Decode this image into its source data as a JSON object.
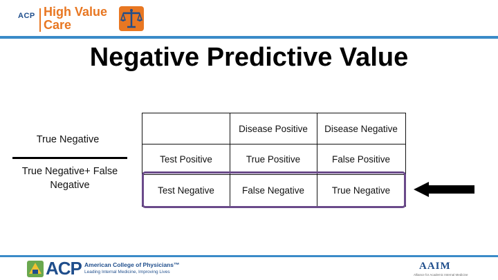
{
  "header": {
    "logo_acp": "ACP",
    "logo_line1": "High Value",
    "logo_line2": "Care"
  },
  "title": "Negative Predictive Value",
  "formula": {
    "numerator": "True Negative",
    "denominator": "True Negative+ False Negative"
  },
  "table": {
    "col_headers": [
      "",
      "Disease Positive",
      "Disease Negative"
    ],
    "rows": [
      [
        "Test Positive",
        "True Positive",
        "False Positive"
      ],
      [
        "Test Negative",
        "False Negative",
        "True Negative"
      ]
    ]
  },
  "footer": {
    "acp_logo": "ACP",
    "acp_name": "American College of Physicians™",
    "acp_tagline": "Leading Internal Medicine, Improving Lives",
    "aaim_logo": "AAIM",
    "aaim_tagline": "Alliance for Academic Internal Medicine"
  },
  "colors": {
    "accent_orange": "#e87722",
    "accent_blue": "#3a8bc8",
    "brand_navy": "#1f4e8c",
    "highlight_purple": "#6a4a8a"
  }
}
